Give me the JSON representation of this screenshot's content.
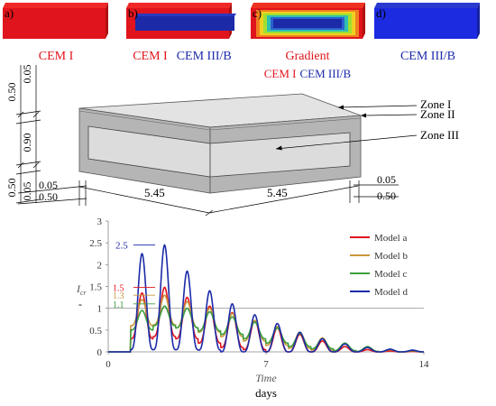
{
  "panels": [
    {
      "letter": "a)",
      "caption_parts": [
        {
          "text": "CEM I",
          "color": "#e0141c"
        }
      ]
    },
    {
      "letter": "b)",
      "caption_parts": [
        {
          "text": "CEM I",
          "color": "#e0141c"
        },
        {
          "text": "CEM III/B",
          "color": "#1c2aa8"
        }
      ]
    },
    {
      "letter": "c)",
      "caption_parts": [
        {
          "text": "Gradient",
          "color": "#e0141c"
        }
      ],
      "sub_parts": [
        {
          "text": "CEM I",
          "color": "#e0141c"
        },
        {
          "text": "CEM III/B",
          "color": "#1c2aa8"
        }
      ]
    },
    {
      "letter": "d)",
      "caption_parts": [
        {
          "text": "CEM III/B",
          "color": "#1c2aa8"
        }
      ]
    }
  ],
  "colors": {
    "red": "#e0141c",
    "blue": "#1c2aa8",
    "box_top": "#e0e0e0",
    "box_side": "#b4b4b4",
    "zone3": "#d9d9d9"
  },
  "diagram": {
    "zones": [
      "Zone I",
      "Zone II",
      "Zone III"
    ],
    "dims_left": [
      "0.50",
      "0.05",
      "0.90",
      "0.50",
      "0.05"
    ],
    "dims_bottom_left": [
      "0.05",
      "0.50"
    ],
    "dims_bottom": [
      "5.45",
      "5.45"
    ],
    "dims_bottom_right": [
      "0.05",
      "0.50"
    ]
  },
  "chart_data": {
    "type": "line",
    "xlabel_italic": "Time",
    "xlabel_unit": "days",
    "ylabel_italic": "I",
    "ylabel_sub": "cr",
    "ylabel_unit": "-",
    "xlim": [
      0,
      14
    ],
    "ylim": [
      0,
      3
    ],
    "xticks": [
      0,
      7,
      14
    ],
    "yticks": [
      0,
      0.5,
      1,
      1.5,
      2,
      2.5,
      3
    ],
    "ytick_labels": [
      "0",
      "0.5",
      "1",
      "1.5",
      "2",
      "2.5",
      "3"
    ],
    "reference_line": 1,
    "peak_labels": [
      {
        "text": "2.5",
        "value": 2.45,
        "color": "#1c2aa8"
      },
      {
        "text": "1.5",
        "value": 1.48,
        "color": "#e0141c"
      },
      {
        "text": "1.3",
        "value": 1.3,
        "color": "#c8963c"
      },
      {
        "text": "1.1",
        "value": 1.1,
        "color": "#3c9e3c"
      }
    ],
    "series": [
      {
        "name": "Model a",
        "color": "#e0141c",
        "peaks": [
          0,
          1.35,
          1.48,
          1.25,
          1.05,
          0.9,
          0.72,
          0.55,
          0.4,
          0.25,
          0.12,
          0.05,
          0.02,
          0.01
        ],
        "floor": [
          0,
          0.3,
          0.35,
          0.3,
          0.2,
          0.1,
          0.05,
          0,
          0,
          0,
          0,
          0,
          0,
          0
        ]
      },
      {
        "name": "Model b",
        "color": "#c8963c",
        "peaks": [
          0,
          1.2,
          1.3,
          1.15,
          1.0,
          0.88,
          0.72,
          0.58,
          0.45,
          0.32,
          0.2,
          0.1,
          0.05,
          0.03
        ],
        "floor": [
          0,
          0.6,
          0.62,
          0.55,
          0.45,
          0.35,
          0.25,
          0.15,
          0.08,
          0.04,
          0.02,
          0.01,
          0,
          0
        ]
      },
      {
        "name": "Model c",
        "color": "#3c9e3c",
        "peaks": [
          0,
          0.95,
          1.05,
          1.0,
          0.92,
          0.8,
          0.68,
          0.55,
          0.42,
          0.3,
          0.2,
          0.12,
          0.06,
          0.03
        ],
        "floor": [
          0,
          0.5,
          0.6,
          0.55,
          0.48,
          0.4,
          0.3,
          0.2,
          0.12,
          0.07,
          0.03,
          0.01,
          0,
          0
        ]
      },
      {
        "name": "Model d",
        "color": "#1c2aa8",
        "peaks": [
          0,
          2.25,
          2.45,
          1.85,
          1.4,
          1.1,
          0.85,
          0.65,
          0.45,
          0.3,
          0.18,
          0.1,
          0.06,
          0.04
        ],
        "floor": [
          0,
          0.05,
          0.05,
          0.05,
          0.04,
          0,
          0,
          0,
          0,
          0,
          0,
          0,
          0,
          0
        ]
      }
    ]
  }
}
